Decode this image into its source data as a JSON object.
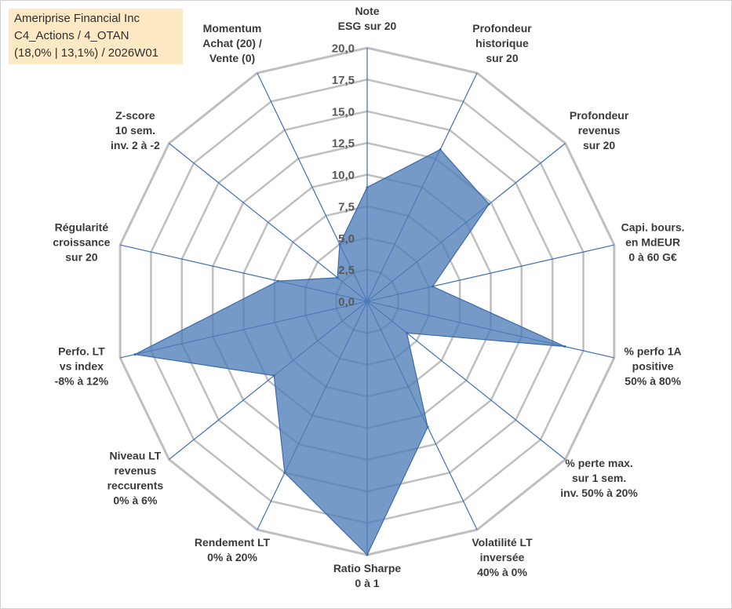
{
  "info_box": {
    "line1": "Ameriprise Financial Inc",
    "line2": "C4_Actions / 4_OTAN",
    "line3": "(18,0% | 13,1%) / 2026W01"
  },
  "colors": {
    "fill": "#4f7db8",
    "stroke": "#3b6aa8",
    "grid": "#bfbfbf",
    "spoke": "#3f6fb5",
    "info_bg": "#fde9c4"
  },
  "chart_data": {
    "type": "radar",
    "title": "",
    "rlim": [
      0,
      20
    ],
    "grid": true,
    "ticks": [
      "0,0",
      "2,5",
      "5,0",
      "7,5",
      "10,0",
      "12,5",
      "15,0",
      "17,5",
      "20,0"
    ],
    "axes": [
      {
        "label": [
          "Note",
          "ESG sur 20"
        ],
        "value": 9.0
      },
      {
        "label": [
          "Profondeur",
          "historique",
          "sur 20"
        ],
        "value": 13.3
      },
      {
        "label": [
          "Profondeur",
          "revenus",
          "sur 20"
        ],
        "value": 12.3
      },
      {
        "label": [
          "Capi. bours.",
          "en MdEUR",
          "0 à 60 G€"
        ],
        "value": 5.3
      },
      {
        "label": [
          "% perfo 1A",
          "positive",
          "50% à 80%"
        ],
        "value": 16.0
      },
      {
        "label": [
          "% perte max.",
          "sur 1 sem.",
          "inv. 50% à 20%"
        ],
        "value": 4.0
      },
      {
        "label": [
          "Volatilité LT",
          "inversée",
          "40% à 0%"
        ],
        "value": 11.0
      },
      {
        "label": [
          "Ratio Sharpe",
          "0 à 1"
        ],
        "value": 20.0
      },
      {
        "label": [
          "Rendement LT",
          "0% à 20%"
        ],
        "value": 15.0
      },
      {
        "label": [
          "Niveau LT",
          "revenus",
          "reccurents",
          "0% à 6%"
        ],
        "value": 9.4
      },
      {
        "label": [
          "Perfo. LT",
          "vs index",
          "-8% à 12%"
        ],
        "value": 18.8
      },
      {
        "label": [
          "Régularité",
          "croissance",
          "sur 20"
        ],
        "value": 7.2
      },
      {
        "label": [
          "Z-score",
          "10 sem.",
          "inv. 2 à -2"
        ],
        "value": 3.0
      },
      {
        "label": [
          "Momentum",
          "Achat (20) /",
          "Vente (0)"
        ],
        "value": 5.0
      }
    ]
  }
}
